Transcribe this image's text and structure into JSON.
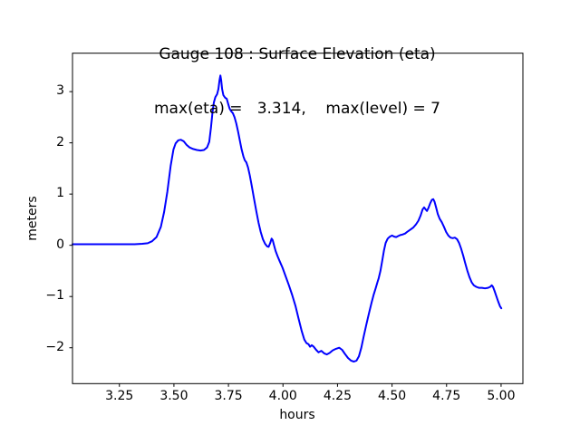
{
  "figure": {
    "title_line1": "Gauge 108 : Surface Elevation (eta)",
    "title_line2": "max(eta) =   3.314,    max(level) = 7",
    "xlabel": "hours",
    "ylabel": "meters"
  },
  "chart_data": {
    "type": "line",
    "title": "Gauge 108 : Surface Elevation (eta)",
    "subtitle": "max(eta) =   3.314,    max(level) = 7",
    "xlabel": "hours",
    "ylabel": "meters",
    "xlim": [
      3.035,
      5.1
    ],
    "ylim": [
      -2.7,
      3.75
    ],
    "grid": false,
    "legend": null,
    "line_color": "#0000ff",
    "axis_color": "#000000",
    "background_color": "#ffffff",
    "xticks": {
      "values": [
        3.25,
        3.5,
        3.75,
        4.0,
        4.25,
        4.5,
        4.75,
        5.0
      ],
      "labels": [
        "3.25",
        "3.50",
        "3.75",
        "4.00",
        "4.25",
        "4.50",
        "4.75",
        "5.00"
      ]
    },
    "yticks": {
      "values": [
        -2,
        -1,
        0,
        1,
        2,
        3
      ],
      "labels": [
        "−2",
        "−1",
        "0",
        "1",
        "2",
        "3"
      ]
    },
    "annotations": {
      "max_eta": 3.314,
      "max_level": 7
    },
    "series": [
      {
        "name": "eta",
        "points": [
          [
            3.035,
            0.02
          ],
          [
            3.08,
            0.02
          ],
          [
            3.13,
            0.02
          ],
          [
            3.18,
            0.02
          ],
          [
            3.23,
            0.02
          ],
          [
            3.28,
            0.02
          ],
          [
            3.32,
            0.02
          ],
          [
            3.355,
            0.03
          ],
          [
            3.38,
            0.04
          ],
          [
            3.4,
            0.08
          ],
          [
            3.42,
            0.16
          ],
          [
            3.44,
            0.36
          ],
          [
            3.455,
            0.65
          ],
          [
            3.47,
            1.05
          ],
          [
            3.485,
            1.55
          ],
          [
            3.498,
            1.87
          ],
          [
            3.508,
            1.99
          ],
          [
            3.52,
            2.05
          ],
          [
            3.532,
            2.06
          ],
          [
            3.545,
            2.03
          ],
          [
            3.558,
            1.96
          ],
          [
            3.572,
            1.91
          ],
          [
            3.588,
            1.88
          ],
          [
            3.605,
            1.86
          ],
          [
            3.622,
            1.85
          ],
          [
            3.638,
            1.86
          ],
          [
            3.652,
            1.91
          ],
          [
            3.662,
            2.02
          ],
          [
            3.67,
            2.3
          ],
          [
            3.677,
            2.6
          ],
          [
            3.683,
            2.79
          ],
          [
            3.69,
            2.89
          ],
          [
            3.698,
            2.95
          ],
          [
            3.704,
            3.05
          ],
          [
            3.709,
            3.22
          ],
          [
            3.713,
            3.314
          ],
          [
            3.717,
            3.22
          ],
          [
            3.721,
            3.05
          ],
          [
            3.727,
            2.93
          ],
          [
            3.735,
            2.88
          ],
          [
            3.742,
            2.86
          ],
          [
            3.749,
            2.76
          ],
          [
            3.755,
            2.67
          ],
          [
            3.762,
            2.62
          ],
          [
            3.77,
            2.58
          ],
          [
            3.778,
            2.5
          ],
          [
            3.786,
            2.38
          ],
          [
            3.794,
            2.22
          ],
          [
            3.802,
            2.05
          ],
          [
            3.81,
            1.88
          ],
          [
            3.818,
            1.74
          ],
          [
            3.825,
            1.66
          ],
          [
            3.832,
            1.62
          ],
          [
            3.84,
            1.52
          ],
          [
            3.848,
            1.36
          ],
          [
            3.857,
            1.16
          ],
          [
            3.867,
            0.92
          ],
          [
            3.878,
            0.66
          ],
          [
            3.888,
            0.44
          ],
          [
            3.898,
            0.26
          ],
          [
            3.908,
            0.12
          ],
          [
            3.918,
            0.03
          ],
          [
            3.927,
            -0.02
          ],
          [
            3.934,
            -0.03
          ],
          [
            3.941,
            0.04
          ],
          [
            3.948,
            0.13
          ],
          [
            3.953,
            0.1
          ],
          [
            3.959,
            0.0
          ],
          [
            3.966,
            -0.11
          ],
          [
            3.975,
            -0.21
          ],
          [
            3.985,
            -0.31
          ],
          [
            3.998,
            -0.44
          ],
          [
            4.012,
            -0.6
          ],
          [
            4.027,
            -0.78
          ],
          [
            4.042,
            -0.97
          ],
          [
            4.057,
            -1.18
          ],
          [
            4.072,
            -1.44
          ],
          [
            4.086,
            -1.68
          ],
          [
            4.098,
            -1.84
          ],
          [
            4.108,
            -1.91
          ],
          [
            4.117,
            -1.93
          ],
          [
            4.124,
            -1.98
          ],
          [
            4.132,
            -1.95
          ],
          [
            4.141,
            -1.98
          ],
          [
            4.152,
            -2.04
          ],
          [
            4.163,
            -2.09
          ],
          [
            4.176,
            -2.06
          ],
          [
            4.189,
            -2.11
          ],
          [
            4.201,
            -2.13
          ],
          [
            4.214,
            -2.1
          ],
          [
            4.228,
            -2.05
          ],
          [
            4.243,
            -2.02
          ],
          [
            4.258,
            -2.0
          ],
          [
            4.271,
            -2.04
          ],
          [
            4.284,
            -2.12
          ],
          [
            4.298,
            -2.2
          ],
          [
            4.312,
            -2.25
          ],
          [
            4.325,
            -2.27
          ],
          [
            4.337,
            -2.25
          ],
          [
            4.348,
            -2.17
          ],
          [
            4.359,
            -2.0
          ],
          [
            4.37,
            -1.78
          ],
          [
            4.382,
            -1.55
          ],
          [
            4.394,
            -1.33
          ],
          [
            4.406,
            -1.12
          ],
          [
            4.416,
            -0.96
          ],
          [
            4.425,
            -0.84
          ],
          [
            4.433,
            -0.72
          ],
          [
            4.439,
            -0.64
          ],
          [
            4.447,
            -0.5
          ],
          [
            4.455,
            -0.3
          ],
          [
            4.463,
            -0.1
          ],
          [
            4.471,
            0.05
          ],
          [
            4.48,
            0.13
          ],
          [
            4.49,
            0.17
          ],
          [
            4.5,
            0.19
          ],
          [
            4.51,
            0.17
          ],
          [
            4.519,
            0.16
          ],
          [
            4.528,
            0.18
          ],
          [
            4.538,
            0.2
          ],
          [
            4.548,
            0.21
          ],
          [
            4.56,
            0.23
          ],
          [
            4.572,
            0.27
          ],
          [
            4.585,
            0.31
          ],
          [
            4.598,
            0.35
          ],
          [
            4.61,
            0.41
          ],
          [
            4.621,
            0.48
          ],
          [
            4.631,
            0.58
          ],
          [
            4.64,
            0.7
          ],
          [
            4.647,
            0.74
          ],
          [
            4.654,
            0.7
          ],
          [
            4.66,
            0.67
          ],
          [
            4.667,
            0.73
          ],
          [
            4.675,
            0.82
          ],
          [
            4.683,
            0.89
          ],
          [
            4.689,
            0.9
          ],
          [
            4.695,
            0.85
          ],
          [
            4.702,
            0.74
          ],
          [
            4.71,
            0.61
          ],
          [
            4.718,
            0.52
          ],
          [
            4.728,
            0.45
          ],
          [
            4.738,
            0.36
          ],
          [
            4.748,
            0.26
          ],
          [
            4.758,
            0.19
          ],
          [
            4.768,
            0.15
          ],
          [
            4.778,
            0.14
          ],
          [
            4.788,
            0.15
          ],
          [
            4.798,
            0.12
          ],
          [
            4.808,
            0.04
          ],
          [
            4.817,
            -0.07
          ],
          [
            4.826,
            -0.2
          ],
          [
            4.835,
            -0.34
          ],
          [
            4.845,
            -0.49
          ],
          [
            4.855,
            -0.62
          ],
          [
            4.865,
            -0.72
          ],
          [
            4.875,
            -0.78
          ],
          [
            4.886,
            -0.81
          ],
          [
            4.898,
            -0.83
          ],
          [
            4.912,
            -0.83
          ],
          [
            4.926,
            -0.84
          ],
          [
            4.94,
            -0.83
          ],
          [
            4.95,
            -0.81
          ],
          [
            4.957,
            -0.78
          ],
          [
            4.963,
            -0.81
          ],
          [
            4.97,
            -0.89
          ],
          [
            4.978,
            -0.99
          ],
          [
            4.987,
            -1.1
          ],
          [
            4.995,
            -1.19
          ],
          [
            5.001,
            -1.23
          ]
        ]
      }
    ]
  }
}
